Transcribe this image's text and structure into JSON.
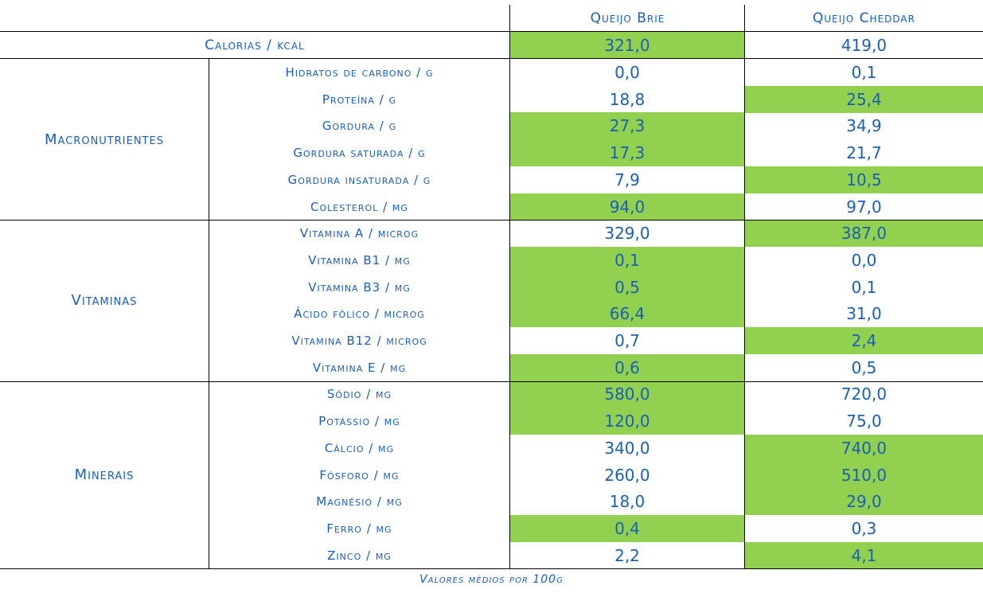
{
  "columns": {
    "brie": "Queijo Brie",
    "cheddar": "Queijo Cheddar"
  },
  "highlight_color": "#92d050",
  "text_color": "#1a5fb4",
  "calories": {
    "label": "Calorias / kcal",
    "brie": "321,0",
    "cheddar": "419,0",
    "highlight": "brie"
  },
  "groups": [
    {
      "name": "Macronutrientes",
      "rows": [
        {
          "label": "Hidratos de carbono / g",
          "brie": "0,0",
          "cheddar": "0,1",
          "highlight": ""
        },
        {
          "label": "Proteína / g",
          "brie": "18,8",
          "cheddar": "25,4",
          "highlight": "cheddar"
        },
        {
          "label": "Gordura / g",
          "brie": "27,3",
          "cheddar": "34,9",
          "highlight": "brie"
        },
        {
          "label": "Gordura saturada / g",
          "brie": "17,3",
          "cheddar": "21,7",
          "highlight": "brie"
        },
        {
          "label": "Gordura insaturada / g",
          "brie": "7,9",
          "cheddar": "10,5",
          "highlight": "cheddar"
        },
        {
          "label": "Colesterol / mg",
          "brie": "94,0",
          "cheddar": "97,0",
          "highlight": "brie"
        }
      ]
    },
    {
      "name": "Vitaminas",
      "rows": [
        {
          "label": "Vitamina A / microg",
          "brie": "329,0",
          "cheddar": "387,0",
          "highlight": "cheddar"
        },
        {
          "label": "Vitamina B1 / mg",
          "brie": "0,1",
          "cheddar": "0,0",
          "highlight": "brie"
        },
        {
          "label": "Vitamina B3 / mg",
          "brie": "0,5",
          "cheddar": "0,1",
          "highlight": "brie"
        },
        {
          "label": "Ácido fólico / microg",
          "brie": "66,4",
          "cheddar": "31,0",
          "highlight": "brie"
        },
        {
          "label": "Vitamina B12 / microg",
          "brie": "0,7",
          "cheddar": "2,4",
          "highlight": "cheddar"
        },
        {
          "label": "Vitamina E / mg",
          "brie": "0,6",
          "cheddar": "0,5",
          "highlight": "brie"
        }
      ]
    },
    {
      "name": "Minerais",
      "rows": [
        {
          "label": "Sódio / mg",
          "brie": "580,0",
          "cheddar": "720,0",
          "highlight": "brie"
        },
        {
          "label": "Potássio / mg",
          "brie": "120,0",
          "cheddar": "75,0",
          "highlight": "brie"
        },
        {
          "label": "Cálcio / mg",
          "brie": "340,0",
          "cheddar": "740,0",
          "highlight": "cheddar"
        },
        {
          "label": "Fósforo / mg",
          "brie": "260,0",
          "cheddar": "510,0",
          "highlight": "cheddar"
        },
        {
          "label": "Magnésio / mg",
          "brie": "18,0",
          "cheddar": "29,0",
          "highlight": "cheddar"
        },
        {
          "label": "Ferro / mg",
          "brie": "0,4",
          "cheddar": "0,3",
          "highlight": "brie"
        },
        {
          "label": "Zinco / mg",
          "brie": "2,2",
          "cheddar": "4,1",
          "highlight": "cheddar"
        }
      ]
    }
  ],
  "footnote": "Valores médios por 100g"
}
